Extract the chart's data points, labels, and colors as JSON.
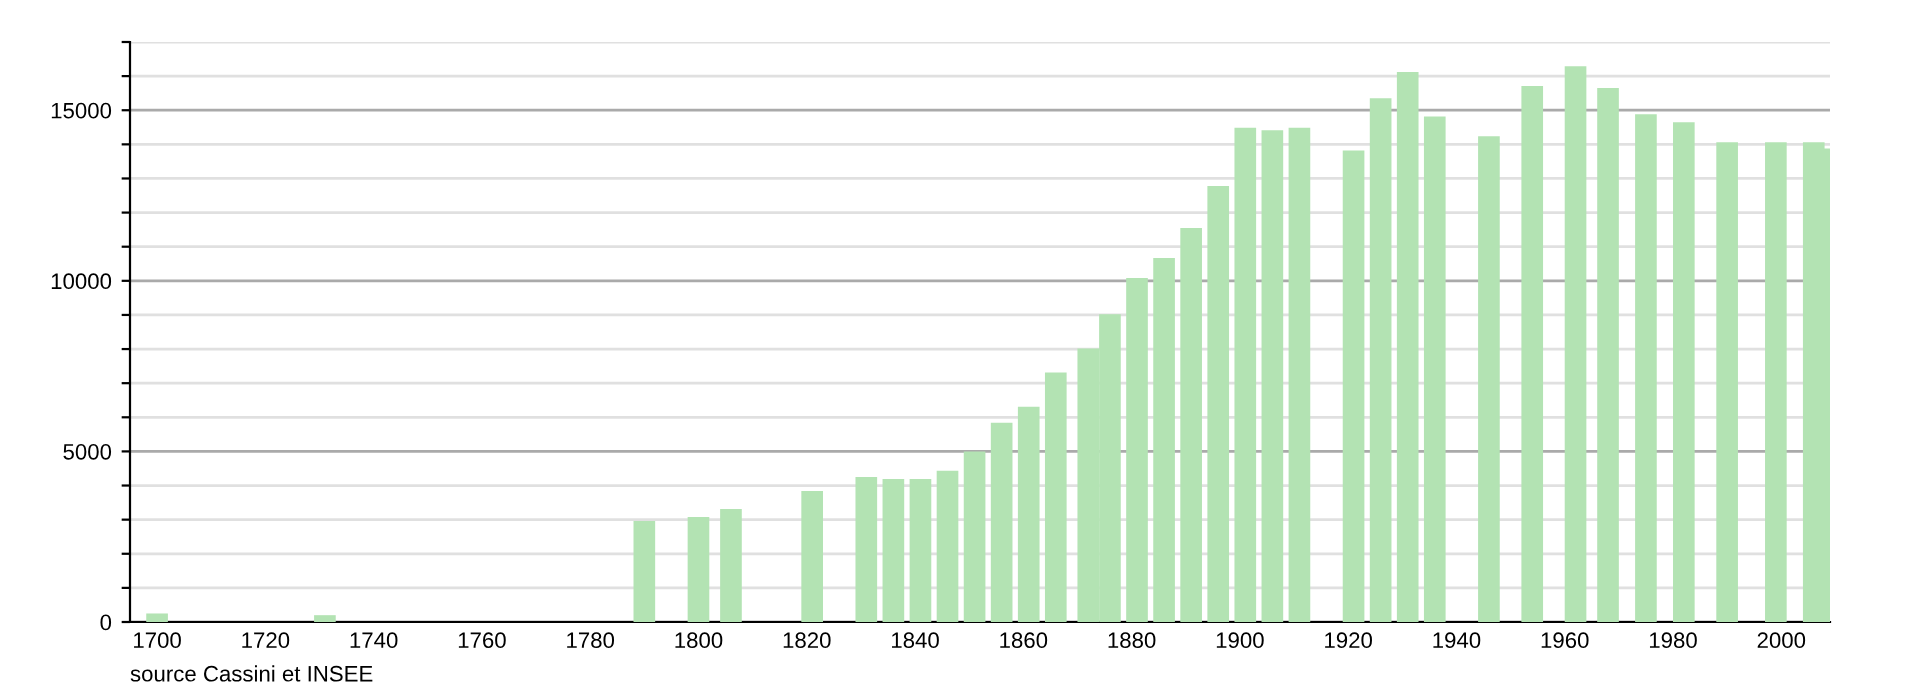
{
  "chart_data": {
    "type": "bar",
    "x": [
      1700,
      1731,
      1790,
      1800,
      1806,
      1821,
      1831,
      1836,
      1841,
      1846,
      1851,
      1856,
      1861,
      1866,
      1872,
      1876,
      1881,
      1886,
      1891,
      1896,
      1901,
      1906,
      1911,
      1921,
      1926,
      1931,
      1936,
      1946,
      1954,
      1962,
      1968,
      1975,
      1982,
      1990,
      1999,
      2006,
      2008
    ],
    "series": [
      {
        "color": "#b3e3b3",
        "values": [
          250,
          200,
          2960,
          3080,
          3310,
          3840,
          4250,
          4190,
          4190,
          4430,
          5000,
          5840,
          6310,
          7310,
          8020,
          9020,
          10080,
          10670,
          11550,
          12780,
          14490,
          14410,
          14490,
          13820,
          15350,
          16120,
          14820,
          14240,
          15710,
          16290,
          15650,
          14880,
          14650,
          14060,
          14060,
          14060,
          13880
        ]
      }
    ],
    "xlim": [
      1695,
      2009
    ],
    "xticks": [
      1700,
      1720,
      1740,
      1760,
      1780,
      1800,
      1820,
      1840,
      1860,
      1880,
      1900,
      1920,
      1940,
      1960,
      1980,
      2000
    ],
    "ylim": [
      0,
      17000
    ],
    "yticks": [
      0,
      {
        "value": 1000,
        "label": null
      },
      {
        "value": 2000,
        "label": null
      },
      {
        "value": 3000,
        "label": null
      },
      {
        "value": 4000,
        "label": null
      },
      5000,
      {
        "value": 6000,
        "label": null
      },
      {
        "value": 7000,
        "label": null
      },
      {
        "value": 8000,
        "label": null
      },
      {
        "value": 9000,
        "label": null
      },
      10000,
      {
        "value": 11000,
        "label": null
      },
      {
        "value": 12000,
        "label": null
      },
      {
        "value": 13000,
        "label": null
      },
      {
        "value": 14000,
        "label": null
      },
      15000,
      {
        "value": 16000,
        "label": null
      },
      {
        "value": 17000,
        "label": null
      }
    ],
    "grid": "y",
    "annotations": [
      "source Cassini et INSEE"
    ]
  }
}
